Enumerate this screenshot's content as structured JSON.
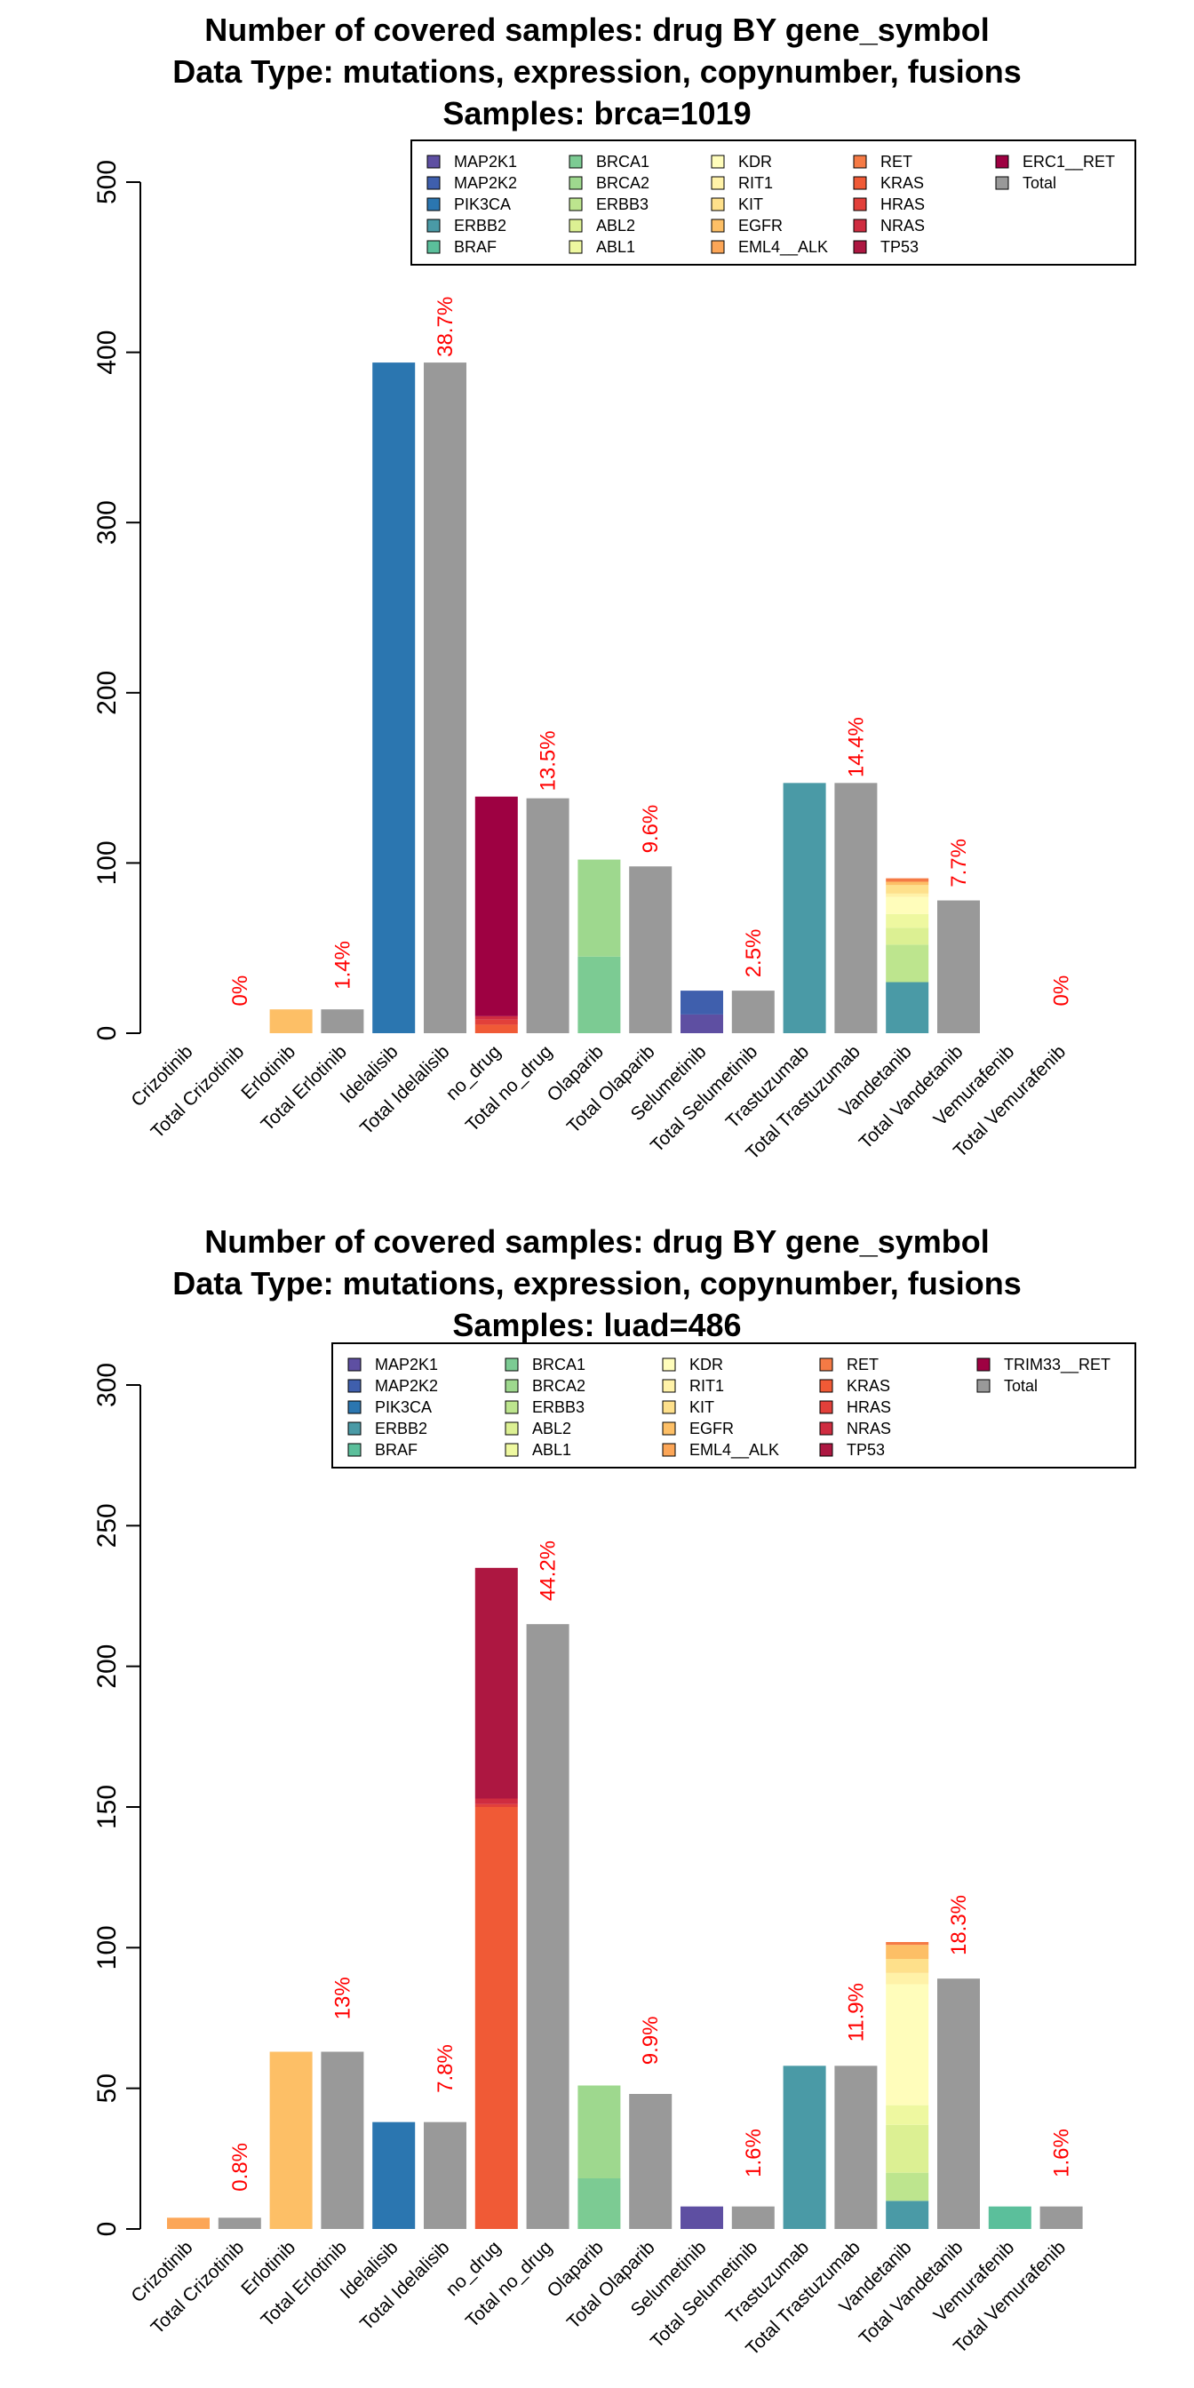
{
  "palette": {
    "MAP2K1": "#5e4fa2",
    "MAP2K2": "#3f5fad",
    "PIK3CA": "#2b76b0",
    "ERBB2": "#4a9aa6",
    "BRAF": "#5bbf9b",
    "BRCA1": "#7ccb93",
    "BRCA2": "#9ed88e",
    "ERBB3": "#bde58e",
    "ABL2": "#dcf093",
    "ABL1": "#eef8a0",
    "KDR": "#fffdbb",
    "RIT1": "#fff2a8",
    "KIT": "#fee08b",
    "EGFR": "#fdbf66",
    "EML4__ALK": "#fca657",
    "RET": "#f57a45",
    "KRAS": "#f05a36",
    "HRAS": "#e2403a",
    "NRAS": "#cf2c40",
    "TP53": "#ad1741",
    "ERC1__RET": "#9e0142",
    "TRIM33__RET": "#9e0142",
    "Total": "#999999"
  },
  "chart_data": [
    {
      "type": "bar",
      "stacked": true,
      "title": [
        "Number of covered samples: drug BY gene_symbol",
        "Data Type: mutations, expression, copynumber, fusions",
        "Samples: brca=1019"
      ],
      "xlabel": "",
      "ylabel": "",
      "ylim": [
        0,
        500
      ],
      "yticks": [
        0,
        100,
        200,
        300,
        400,
        500
      ],
      "legend": {
        "placement": "top-right",
        "columns": [
          [
            "MAP2K1",
            "MAP2K2",
            "PIK3CA",
            "ERBB2",
            "BRAF"
          ],
          [
            "BRCA1",
            "BRCA2",
            "ERBB3",
            "ABL2",
            "ABL1"
          ],
          [
            "KDR",
            "RIT1",
            "KIT",
            "EGFR",
            "EML4__ALK"
          ],
          [
            "RET",
            "KRAS",
            "HRAS",
            "NRAS",
            "TP53"
          ],
          [
            "ERC1__RET",
            "Total"
          ]
        ]
      },
      "categories": [
        "Crizotinib",
        "Total Crizotinib",
        "Erlotinib",
        "Total Erlotinib",
        "Idelalisib",
        "Total Idelalisib",
        "no_drug",
        "Total no_drug",
        "Olaparib",
        "Total Olaparib",
        "Selumetinib",
        "Total Selumetinib",
        "Trastuzumab",
        "Total Trastuzumab",
        "Vandetanib",
        "Total Vandetanib",
        "Vemurafenib",
        "Total Vemurafenib"
      ],
      "bars": [
        [],
        [],
        [
          {
            "gene": "EGFR",
            "value": 14
          }
        ],
        [
          {
            "gene": "Total",
            "value": 14
          }
        ],
        [
          {
            "gene": "PIK3CA",
            "value": 394
          }
        ],
        [
          {
            "gene": "Total",
            "value": 394
          }
        ],
        [
          {
            "gene": "KRAS",
            "value": 5
          },
          {
            "gene": "HRAS",
            "value": 3
          },
          {
            "gene": "NRAS",
            "value": 2
          },
          {
            "gene": "ERC1__RET",
            "value": 129
          }
        ],
        [
          {
            "gene": "Total",
            "value": 138
          }
        ],
        [
          {
            "gene": "BRCA1",
            "value": 45
          },
          {
            "gene": "BRCA2",
            "value": 57
          }
        ],
        [
          {
            "gene": "Total",
            "value": 98
          }
        ],
        [
          {
            "gene": "MAP2K1",
            "value": 11
          },
          {
            "gene": "MAP2K2",
            "value": 14
          }
        ],
        [
          {
            "gene": "Total",
            "value": 25
          }
        ],
        [
          {
            "gene": "ERBB2",
            "value": 147
          }
        ],
        [
          {
            "gene": "Total",
            "value": 147
          }
        ],
        [
          {
            "gene": "ERBB2",
            "value": 30
          },
          {
            "gene": "ERBB3",
            "value": 22
          },
          {
            "gene": "ABL2",
            "value": 10
          },
          {
            "gene": "ABL1",
            "value": 8
          },
          {
            "gene": "KDR",
            "value": 10
          },
          {
            "gene": "RIT1",
            "value": 2
          },
          {
            "gene": "KIT",
            "value": 5
          },
          {
            "gene": "EGFR",
            "value": 2
          },
          {
            "gene": "RET",
            "value": 2
          }
        ],
        [
          {
            "gene": "Total",
            "value": 78
          }
        ],
        [],
        []
      ],
      "percent_labels": [
        {
          "category": "Total Crizotinib",
          "text": "0%",
          "y": 25
        },
        {
          "category": "Total Erlotinib",
          "text": "1.4%",
          "y": 40
        },
        {
          "category": "Total Idelalisib",
          "text": "38.7%",
          "y": 415
        },
        {
          "category": "Total no_drug",
          "text": "13.5%",
          "y": 160
        },
        {
          "category": "Total Olaparib",
          "text": "9.6%",
          "y": 120
        },
        {
          "category": "Total Selumetinib",
          "text": "2.5%",
          "y": 47
        },
        {
          "category": "Total Trastuzumab",
          "text": "14.4%",
          "y": 168
        },
        {
          "category": "Total Vandetanib",
          "text": "7.7%",
          "y": 100
        },
        {
          "category": "Total Vemurafenib",
          "text": "0%",
          "y": 25
        }
      ]
    },
    {
      "type": "bar",
      "stacked": true,
      "title": [
        "Number of covered samples: drug BY gene_symbol",
        "Data Type: mutations, expression, copynumber, fusions",
        "Samples: luad=486"
      ],
      "xlabel": "",
      "ylabel": "",
      "ylim": [
        0,
        300
      ],
      "yticks": [
        0,
        50,
        100,
        150,
        200,
        250,
        300
      ],
      "legend": {
        "placement": "top-right",
        "columns": [
          [
            "MAP2K1",
            "MAP2K2",
            "PIK3CA",
            "ERBB2",
            "BRAF"
          ],
          [
            "BRCA1",
            "BRCA2",
            "ERBB3",
            "ABL2",
            "ABL1"
          ],
          [
            "KDR",
            "RIT1",
            "KIT",
            "EGFR",
            "EML4__ALK"
          ],
          [
            "RET",
            "KRAS",
            "HRAS",
            "NRAS",
            "TP53"
          ],
          [
            "TRIM33__RET",
            "Total"
          ]
        ]
      },
      "categories": [
        "Crizotinib",
        "Total Crizotinib",
        "Erlotinib",
        "Total Erlotinib",
        "Idelalisib",
        "Total Idelalisib",
        "no_drug",
        "Total no_drug",
        "Olaparib",
        "Total Olaparib",
        "Selumetinib",
        "Total Selumetinib",
        "Trastuzumab",
        "Total Trastuzumab",
        "Vandetanib",
        "Total Vandetanib",
        "Vemurafenib",
        "Total Vemurafenib"
      ],
      "bars": [
        [
          {
            "gene": "EML4__ALK",
            "value": 4
          }
        ],
        [
          {
            "gene": "Total",
            "value": 4
          }
        ],
        [
          {
            "gene": "EGFR",
            "value": 63
          }
        ],
        [
          {
            "gene": "Total",
            "value": 63
          }
        ],
        [
          {
            "gene": "PIK3CA",
            "value": 38
          }
        ],
        [
          {
            "gene": "Total",
            "value": 38
          }
        ],
        [
          {
            "gene": "KRAS",
            "value": 150
          },
          {
            "gene": "HRAS",
            "value": 1
          },
          {
            "gene": "NRAS",
            "value": 2
          },
          {
            "gene": "TP53",
            "value": 82
          }
        ],
        [
          {
            "gene": "Total",
            "value": 215
          }
        ],
        [
          {
            "gene": "BRCA1",
            "value": 18
          },
          {
            "gene": "BRCA2",
            "value": 33
          }
        ],
        [
          {
            "gene": "Total",
            "value": 48
          }
        ],
        [
          {
            "gene": "MAP2K1",
            "value": 8
          }
        ],
        [
          {
            "gene": "Total",
            "value": 8
          }
        ],
        [
          {
            "gene": "ERBB2",
            "value": 58
          }
        ],
        [
          {
            "gene": "Total",
            "value": 58
          }
        ],
        [
          {
            "gene": "ERBB2",
            "value": 10
          },
          {
            "gene": "ERBB3",
            "value": 10
          },
          {
            "gene": "ABL2",
            "value": 17
          },
          {
            "gene": "ABL1",
            "value": 7
          },
          {
            "gene": "KDR",
            "value": 43
          },
          {
            "gene": "RIT1",
            "value": 4
          },
          {
            "gene": "KIT",
            "value": 5
          },
          {
            "gene": "EGFR",
            "value": 5
          },
          {
            "gene": "RET",
            "value": 1
          }
        ],
        [
          {
            "gene": "Total",
            "value": 89
          }
        ],
        [
          {
            "gene": "BRAF",
            "value": 8
          }
        ],
        [
          {
            "gene": "Total",
            "value": 8
          }
        ]
      ],
      "percent_labels": [
        {
          "category": "Total Crizotinib",
          "text": "0.8%",
          "y": 22
        },
        {
          "category": "Total Erlotinib",
          "text": "13%",
          "y": 82
        },
        {
          "category": "Total Idelalisib",
          "text": "7.8%",
          "y": 57
        },
        {
          "category": "Total no_drug",
          "text": "44.2%",
          "y": 234
        },
        {
          "category": "Total Olaparib",
          "text": "9.9%",
          "y": 67
        },
        {
          "category": "Total Selumetinib",
          "text": "1.6%",
          "y": 27
        },
        {
          "category": "Total Trastuzumab",
          "text": "11.9%",
          "y": 77
        },
        {
          "category": "Total Vandetanib",
          "text": "18.3%",
          "y": 108
        },
        {
          "category": "Total Vemurafenib",
          "text": "1.6%",
          "y": 27
        }
      ]
    }
  ]
}
